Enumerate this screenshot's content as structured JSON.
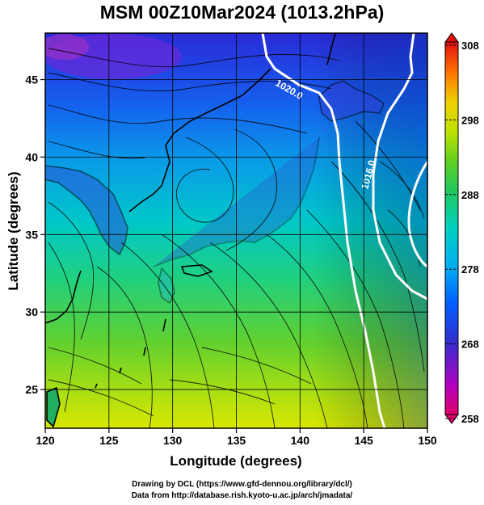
{
  "title": "MSM 00Z10Mar2024 (1013.2hPa)",
  "map": {
    "x_axis": {
      "label": "Longitude (degrees)",
      "min": 120,
      "max": 150,
      "ticks": [
        "120",
        "125",
        "130",
        "135",
        "140",
        "145",
        "150"
      ]
    },
    "y_axis": {
      "label": "Latitude  (degrees)",
      "min": 22.5,
      "max": 48,
      "ticks": [
        "25",
        "30",
        "35",
        "40",
        "45"
      ]
    },
    "gridlines": true,
    "contours": [
      {
        "label": "1020.0",
        "color": "#ffffff"
      },
      {
        "label": "1016.0",
        "color": "#ffffff"
      }
    ],
    "field": "temperature (K)",
    "vector_field": "wind streamlines"
  },
  "colorbar": {
    "min": 258,
    "max": 308,
    "tick_labels": [
      "308",
      "298",
      "288",
      "278",
      "268",
      "258"
    ],
    "colors": [
      "#e0006a",
      "#b000c0",
      "#4040e0",
      "#0060ff",
      "#00a0ff",
      "#00d0d0",
      "#00d090",
      "#30c030",
      "#a0e000",
      "#e0e000",
      "#ffa000",
      "#ff5000",
      "#e01010"
    ]
  },
  "footer": {
    "line1": "Drawing by DCL (https://www.gfd-dennou.org/library/dcl/)",
    "line2": "Data from http://database.rish.kyoto-u.ac.jp/arch/jmadata/"
  }
}
